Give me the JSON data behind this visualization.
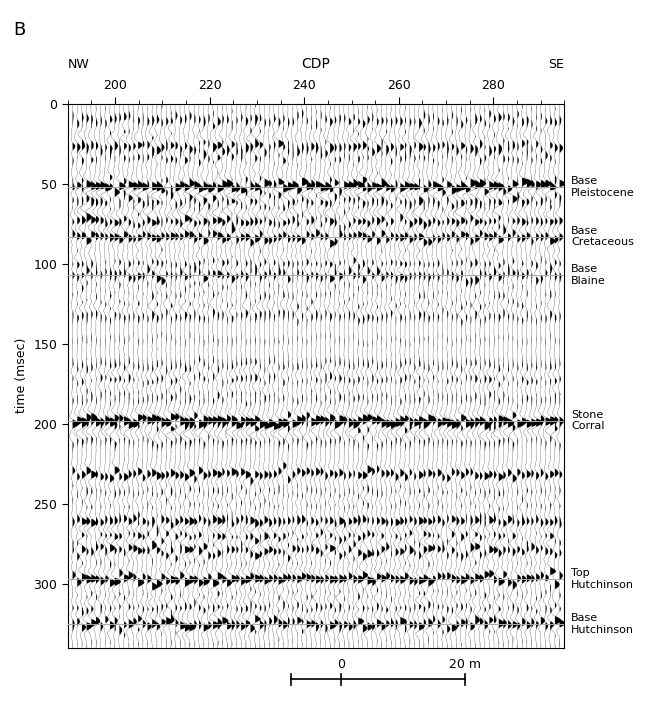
{
  "panel_label": "B",
  "xlabel_cdp": "CDP",
  "xlabel_nw": "NW",
  "xlabel_se": "SE",
  "ylabel": "time (msec)",
  "cdp_range": [
    190,
    295
  ],
  "cdp_ticks": [
    200,
    220,
    240,
    260,
    280
  ],
  "time_range": [
    0,
    340
  ],
  "time_ticks": [
    0,
    50,
    100,
    150,
    200,
    250,
    300
  ],
  "horizons": [
    {
      "time": 52,
      "label": "Base\nPleistocene"
    },
    {
      "time": 83,
      "label": "Base\nCretaceous"
    },
    {
      "time": 107,
      "label": "Base\nBlaine"
    },
    {
      "time": 198,
      "label": "Stone\nCorral"
    },
    {
      "time": 297,
      "label": "Top\nHutchinson"
    },
    {
      "time": 325,
      "label": "Base\nHutchinson"
    }
  ],
  "scale_bar_label": "20 m",
  "scale_bar_zero": "0",
  "background_color": "#ffffff",
  "trace_color": "#000000",
  "horizon_color": "#aaaaaa",
  "num_traces": 105,
  "n_samples": 500,
  "seed": 42,
  "gain": 1.3
}
